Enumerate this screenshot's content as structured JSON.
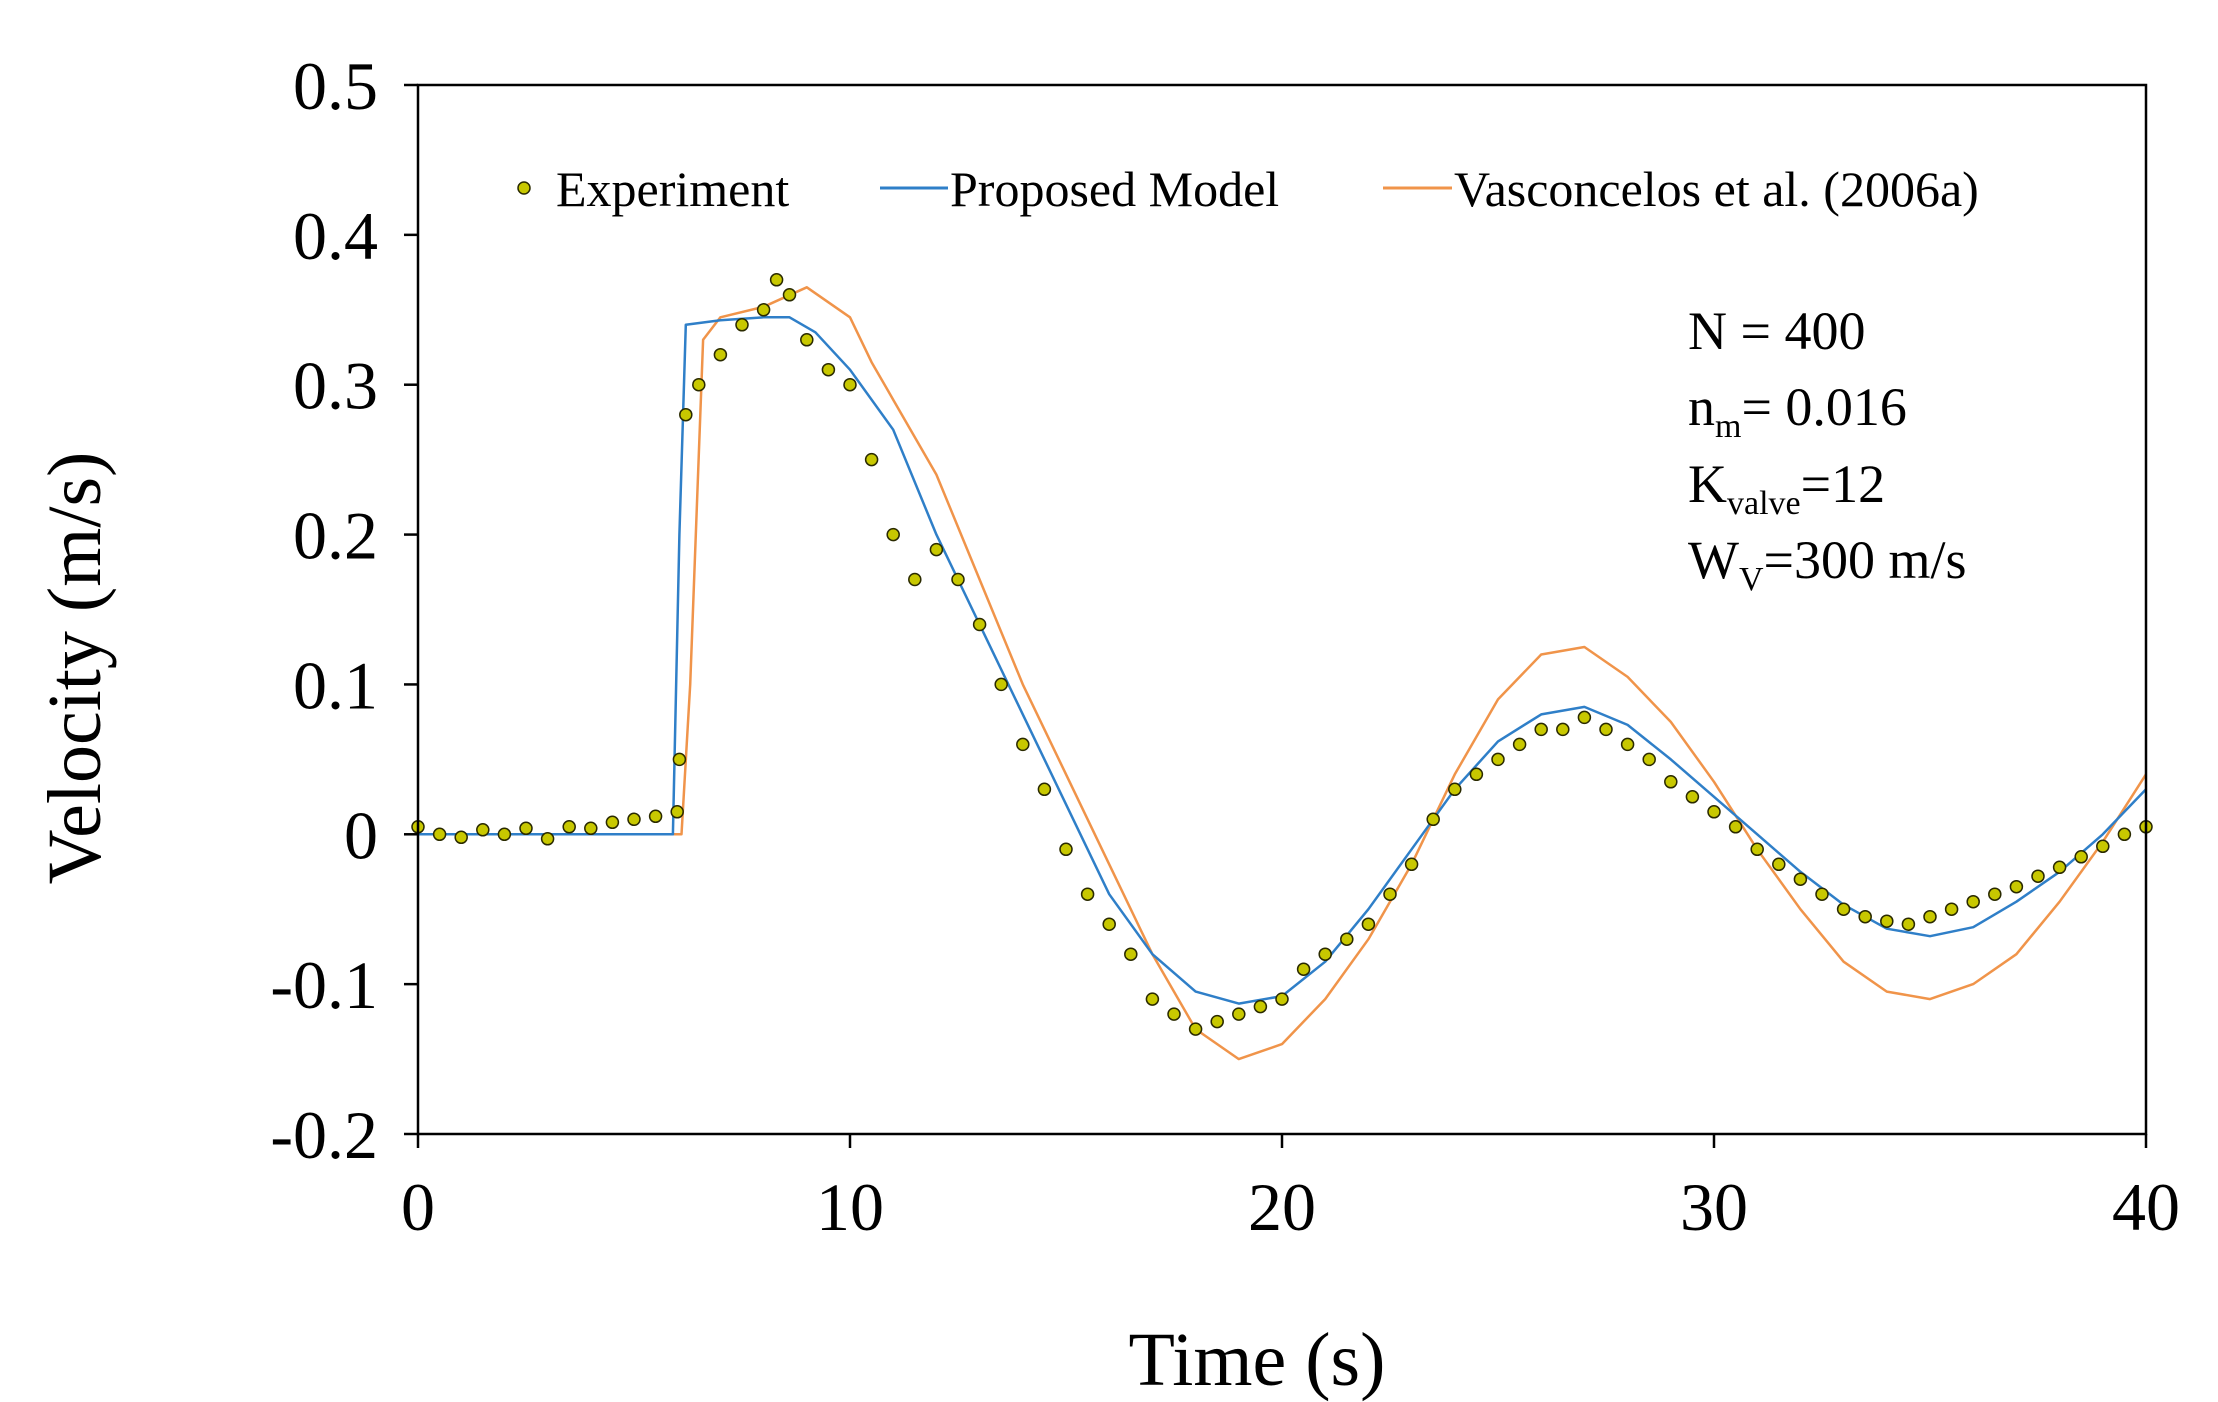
{
  "chart_data": {
    "type": "line",
    "title": "",
    "xlabel": "Time (s)",
    "ylabel": "Velocity (m/s)",
    "xlim": [
      0,
      40
    ],
    "ylim": [
      -0.2,
      0.5
    ],
    "xticks": [
      0,
      10,
      20,
      30,
      40
    ],
    "yticks": [
      -0.2,
      -0.1,
      0,
      0.1,
      0.2,
      0.3,
      0.4,
      0.5
    ],
    "xtick_labels": [
      "0",
      "10",
      "20",
      "30",
      "40"
    ],
    "ytick_labels": [
      "-0.2",
      "-0.1",
      "0",
      "0.1",
      "0.2",
      "0.3",
      "0.4",
      "0.5"
    ],
    "grid": false,
    "legend_position": "top",
    "colors": {
      "experiment_fill": "#c8c800",
      "experiment_edge": "#2a2a00",
      "proposed_model": "#2f7fc8",
      "vasconcelos": "#f0944a",
      "axis": "#000000"
    },
    "legend": {
      "experiment": "Experiment",
      "proposed": "Proposed Model",
      "vasconcelos": "Vasconcelos et al. (2006a)"
    },
    "annotations": {
      "N": "N = 400",
      "nm_main": "n",
      "nm_sub": "m",
      "nm_value": "=  0.016",
      "k_main": "K",
      "k_sub": "valve",
      "k_value": "=12",
      "w_main": "W",
      "w_sub": "V",
      "w_value": "=300  m/s"
    },
    "series": [
      {
        "name": "Proposed Model",
        "x": [
          0,
          5.9,
          6.05,
          6.2,
          7,
          8,
          8.6,
          9.2,
          10,
          11,
          12,
          13,
          14,
          15,
          16,
          17,
          18,
          19,
          20,
          21,
          22,
          23,
          24,
          25,
          26,
          27,
          28,
          29,
          30,
          31,
          32,
          33,
          34,
          35,
          36,
          37,
          38,
          39,
          40
        ],
        "values": [
          0,
          0,
          0.2,
          0.34,
          0.343,
          0.345,
          0.345,
          0.335,
          0.31,
          0.27,
          0.2,
          0.14,
          0.08,
          0.02,
          -0.04,
          -0.08,
          -0.105,
          -0.113,
          -0.108,
          -0.085,
          -0.05,
          -0.01,
          0.03,
          0.062,
          0.08,
          0.085,
          0.073,
          0.05,
          0.025,
          0,
          -0.025,
          -0.047,
          -0.063,
          -0.068,
          -0.062,
          -0.045,
          -0.025,
          0,
          0.03
        ]
      },
      {
        "name": "Vasconcelos et al. (2006a)",
        "x": [
          0,
          6.1,
          6.3,
          6.6,
          7,
          8,
          9,
          10,
          10.5,
          11,
          12,
          13,
          14,
          15,
          16,
          17,
          18,
          19,
          20,
          21,
          22,
          23,
          24,
          25,
          26,
          27,
          28,
          29,
          30,
          31,
          32,
          33,
          34,
          35,
          36,
          37,
          38,
          39,
          40
        ],
        "values": [
          0,
          0,
          0.1,
          0.33,
          0.345,
          0.352,
          0.365,
          0.345,
          0.315,
          0.29,
          0.24,
          0.17,
          0.1,
          0.04,
          -0.02,
          -0.08,
          -0.13,
          -0.15,
          -0.14,
          -0.11,
          -0.07,
          -0.02,
          0.04,
          0.09,
          0.12,
          0.125,
          0.105,
          0.075,
          0.035,
          -0.01,
          -0.05,
          -0.085,
          -0.105,
          -0.11,
          -0.1,
          -0.08,
          -0.045,
          -0.005,
          0.04
        ]
      },
      {
        "name": "Experiment",
        "type": "scatter",
        "x": [
          0,
          0.5,
          1,
          1.5,
          2,
          2.5,
          3,
          3.5,
          4,
          4.5,
          5,
          5.5,
          6,
          6.05,
          6.2,
          6.5,
          7,
          7.5,
          8,
          8.3,
          8.6,
          9,
          9.5,
          10,
          10.5,
          11,
          11.5,
          12,
          12.5,
          13,
          13.5,
          14,
          14.5,
          15,
          15.5,
          16,
          16.5,
          17,
          17.5,
          18,
          18.5,
          19,
          19.5,
          20,
          20.5,
          21,
          21.5,
          22,
          22.5,
          23,
          23.5,
          24,
          24.5,
          25,
          25.5,
          26,
          26.5,
          27,
          27.5,
          28,
          28.5,
          29,
          29.5,
          30,
          30.5,
          31,
          31.5,
          32,
          32.5,
          33,
          33.5,
          34,
          34.5,
          35,
          35.5,
          36,
          36.5,
          37,
          37.5,
          38,
          38.5,
          39,
          39.5,
          40
        ],
        "values": [
          0.005,
          0,
          -0.002,
          0.003,
          0,
          0.004,
          -0.003,
          0.005,
          0.004,
          0.008,
          0.01,
          0.012,
          0.015,
          0.05,
          0.28,
          0.3,
          0.32,
          0.34,
          0.35,
          0.37,
          0.36,
          0.33,
          0.31,
          0.3,
          0.25,
          0.2,
          0.17,
          0.19,
          0.17,
          0.14,
          0.1,
          0.06,
          0.03,
          -0.01,
          -0.04,
          -0.06,
          -0.08,
          -0.11,
          -0.12,
          -0.13,
          -0.125,
          -0.12,
          -0.115,
          -0.11,
          -0.09,
          -0.08,
          -0.07,
          -0.06,
          -0.04,
          -0.02,
          0.01,
          0.03,
          0.04,
          0.05,
          0.06,
          0.07,
          0.07,
          0.078,
          0.07,
          0.06,
          0.05,
          0.035,
          0.025,
          0.015,
          0.005,
          -0.01,
          -0.02,
          -0.03,
          -0.04,
          -0.05,
          -0.055,
          -0.058,
          -0.06,
          -0.055,
          -0.05,
          -0.045,
          -0.04,
          -0.035,
          -0.028,
          -0.022,
          -0.015,
          -0.008,
          0,
          0.005
        ]
      }
    ]
  }
}
